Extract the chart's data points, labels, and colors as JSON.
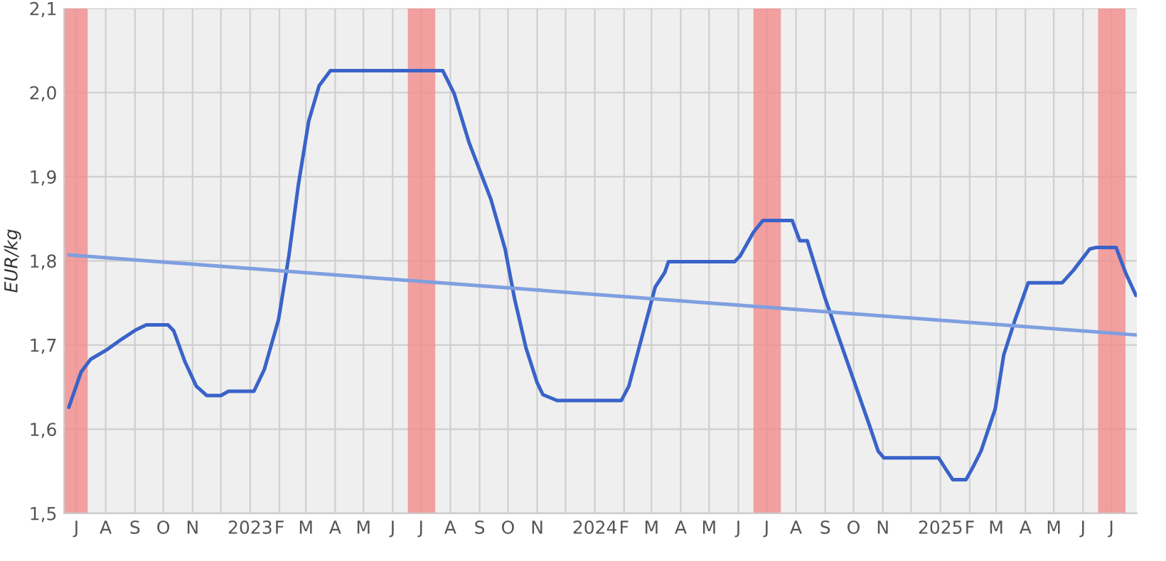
{
  "chart_data": {
    "type": "line",
    "ylabel": "EUR/kg",
    "xlim": [
      "2022-06-18",
      "2025-07-28"
    ],
    "ylim": [
      1.5,
      2.1
    ],
    "yticks": [
      {
        "value": 1.5,
        "label": "1,5"
      },
      {
        "value": 1.6,
        "label": "1,6"
      },
      {
        "value": 1.7,
        "label": "1,7"
      },
      {
        "value": 1.8,
        "label": "1,8"
      },
      {
        "value": 1.9,
        "label": "1,9"
      },
      {
        "value": 2.0,
        "label": "2,0"
      },
      {
        "value": 2.1,
        "label": "2,1"
      }
    ],
    "xticks": [
      {
        "value": "2022-07-01",
        "label": "J"
      },
      {
        "value": "2022-08-01",
        "label": "A"
      },
      {
        "value": "2022-09-01",
        "label": "S"
      },
      {
        "value": "2022-10-01",
        "label": "O"
      },
      {
        "value": "2022-11-01",
        "label": "N"
      },
      {
        "value": "2022-12-01",
        "label": null
      },
      {
        "value": "2023-01-01",
        "label": "2023"
      },
      {
        "value": "2023-02-01",
        "label": "F"
      },
      {
        "value": "2023-03-01",
        "label": "M"
      },
      {
        "value": "2023-04-01",
        "label": "A"
      },
      {
        "value": "2023-05-01",
        "label": "M"
      },
      {
        "value": "2023-06-01",
        "label": "J"
      },
      {
        "value": "2023-07-01",
        "label": "J"
      },
      {
        "value": "2023-08-01",
        "label": "A"
      },
      {
        "value": "2023-09-01",
        "label": "S"
      },
      {
        "value": "2023-10-01",
        "label": "O"
      },
      {
        "value": "2023-11-01",
        "label": "N"
      },
      {
        "value": "2023-12-01",
        "label": null
      },
      {
        "value": "2024-01-01",
        "label": "2024"
      },
      {
        "value": "2024-02-01",
        "label": "F"
      },
      {
        "value": "2024-03-01",
        "label": "M"
      },
      {
        "value": "2024-04-01",
        "label": "A"
      },
      {
        "value": "2024-05-01",
        "label": "M"
      },
      {
        "value": "2024-06-01",
        "label": "J"
      },
      {
        "value": "2024-07-01",
        "label": "J"
      },
      {
        "value": "2024-08-01",
        "label": "A"
      },
      {
        "value": "2024-09-01",
        "label": "S"
      },
      {
        "value": "2024-10-01",
        "label": "O"
      },
      {
        "value": "2024-11-01",
        "label": "N"
      },
      {
        "value": "2024-12-01",
        "label": null
      },
      {
        "value": "2025-01-01",
        "label": "2025"
      },
      {
        "value": "2025-02-01",
        "label": "F"
      },
      {
        "value": "2025-03-01",
        "label": "M"
      },
      {
        "value": "2025-04-01",
        "label": "A"
      },
      {
        "value": "2025-05-01",
        "label": "M"
      },
      {
        "value": "2025-06-01",
        "label": "J"
      },
      {
        "value": "2025-07-01",
        "label": "J"
      }
    ],
    "grid": true,
    "legend": false,
    "marker": "none",
    "line_style": "solid",
    "bands": [
      {
        "axis": "x",
        "from": "2022-06-18",
        "to": "2022-07-13",
        "color": "#f28b8b"
      },
      {
        "axis": "x",
        "from": "2023-06-17",
        "to": "2023-07-16",
        "color": "#f28b8b"
      },
      {
        "axis": "x",
        "from": "2024-06-17",
        "to": "2024-07-16",
        "color": "#f28b8b"
      },
      {
        "axis": "x",
        "from": "2025-06-17",
        "to": "2025-07-16",
        "color": "#f28b8b"
      }
    ],
    "series": [
      {
        "color": "#3a63c9",
        "x": [
          "2022-06-23",
          "2022-07-06",
          "2022-07-16",
          "2022-08-03",
          "2022-08-18",
          "2022-09-02",
          "2022-09-13",
          "2022-10-06",
          "2022-10-12",
          "2022-10-24",
          "2022-11-05",
          "2022-11-16",
          "2022-12-01",
          "2022-12-09",
          "2023-01-05",
          "2023-01-16",
          "2023-01-31",
          "2023-02-11",
          "2023-02-21",
          "2023-03-04",
          "2023-03-15",
          "2023-03-27",
          "2023-07-24",
          "2023-08-05",
          "2023-08-21",
          "2023-09-13",
          "2023-09-28",
          "2023-10-08",
          "2023-10-20",
          "2023-11-01",
          "2023-11-07",
          "2023-11-22",
          "2024-01-29",
          "2024-02-06",
          "2024-03-05",
          "2024-03-15",
          "2024-03-19",
          "2024-05-28",
          "2024-06-03",
          "2024-06-17",
          "2024-06-27",
          "2024-07-28",
          "2024-08-05",
          "2024-08-13",
          "2024-09-01",
          "2024-10-18",
          "2024-10-27",
          "2024-11-02",
          "2024-12-30",
          "2025-01-07",
          "2025-01-14",
          "2025-01-28",
          "2025-02-04",
          "2025-02-13",
          "2025-02-28",
          "2025-03-09",
          "2025-03-21",
          "2025-04-04",
          "2025-05-10",
          "2025-05-22",
          "2025-06-08",
          "2025-06-15",
          "2025-07-06",
          "2025-07-16",
          "2025-07-27"
        ],
        "values": [
          1.626,
          1.668,
          1.683,
          1.695,
          1.707,
          1.718,
          1.724,
          1.724,
          1.717,
          1.68,
          1.651,
          1.64,
          1.64,
          1.645,
          1.645,
          1.671,
          1.73,
          1.806,
          1.89,
          1.966,
          2.008,
          2.026,
          2.026,
          1.999,
          1.94,
          1.873,
          1.814,
          1.755,
          1.697,
          1.655,
          1.641,
          1.634,
          1.634,
          1.651,
          1.769,
          1.786,
          1.799,
          1.799,
          1.806,
          1.834,
          1.848,
          1.848,
          1.824,
          1.824,
          1.755,
          1.604,
          1.574,
          1.566,
          1.566,
          1.552,
          1.54,
          1.54,
          1.554,
          1.574,
          1.624,
          1.688,
          1.73,
          1.774,
          1.774,
          1.789,
          1.814,
          1.816,
          1.816,
          1.786,
          1.759
        ]
      },
      {
        "color": "#7f9fe0",
        "x": [
          "2022-06-23",
          "2025-07-27"
        ],
        "values": [
          1.807,
          1.712
        ]
      }
    ]
  }
}
